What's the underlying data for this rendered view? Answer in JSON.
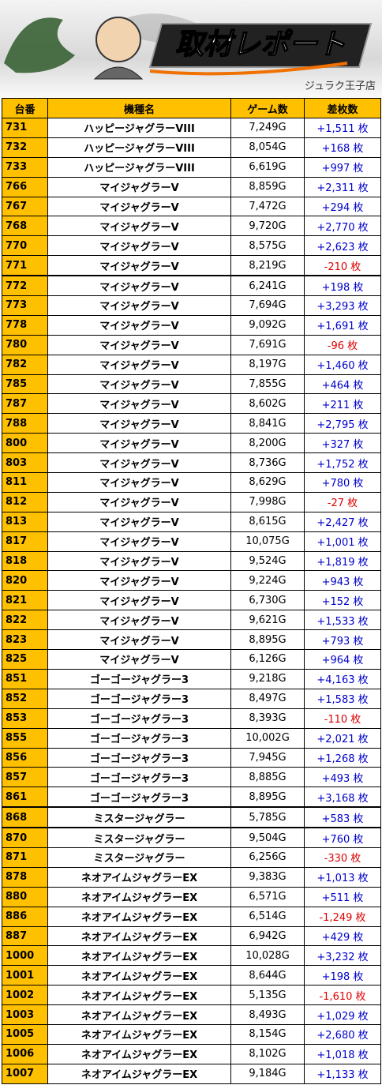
{
  "header": {
    "title": "取材レポート",
    "store": "ジュラク王子店"
  },
  "table": {
    "columns": [
      "台番",
      "機種名",
      "ゲーム数",
      "差枚数"
    ],
    "rows": [
      [
        "731",
        "ハッピージャグラーVIII",
        "7,249G",
        "+1,511 枚"
      ],
      [
        "732",
        "ハッピージャグラーVIII",
        "8,054G",
        "+168 枚"
      ],
      [
        "733",
        "ハッピージャグラーVIII",
        "6,619G",
        "+997 枚"
      ],
      [
        "766",
        "マイジャグラーV",
        "8,859G",
        "+2,311 枚"
      ],
      [
        "767",
        "マイジャグラーV",
        "7,472G",
        "+294 枚"
      ],
      [
        "768",
        "マイジャグラーV",
        "9,720G",
        "+2,770 枚"
      ],
      [
        "770",
        "マイジャグラーV",
        "8,575G",
        "+2,623 枚"
      ],
      [
        "771",
        "マイジャグラーV",
        "8,219G",
        "-210 枚"
      ],
      [
        "772",
        "マイジャグラーV",
        "6,241G",
        "+198 枚"
      ],
      [
        "773",
        "マイジャグラーV",
        "7,694G",
        "+3,293 枚"
      ],
      [
        "778",
        "マイジャグラーV",
        "9,092G",
        "+1,691 枚"
      ],
      [
        "780",
        "マイジャグラーV",
        "7,691G",
        "-96 枚"
      ],
      [
        "782",
        "マイジャグラーV",
        "8,197G",
        "+1,460 枚"
      ],
      [
        "785",
        "マイジャグラーV",
        "7,855G",
        "+464 枚"
      ],
      [
        "787",
        "マイジャグラーV",
        "8,602G",
        "+211 枚"
      ],
      [
        "788",
        "マイジャグラーV",
        "8,841G",
        "+2,795 枚"
      ],
      [
        "800",
        "マイジャグラーV",
        "8,200G",
        "+327 枚"
      ],
      [
        "803",
        "マイジャグラーV",
        "8,736G",
        "+1,752 枚"
      ],
      [
        "811",
        "マイジャグラーV",
        "8,629G",
        "+780 枚"
      ],
      [
        "812",
        "マイジャグラーV",
        "7,998G",
        "-27 枚"
      ],
      [
        "813",
        "マイジャグラーV",
        "8,615G",
        "+2,427 枚"
      ],
      [
        "817",
        "マイジャグラーV",
        "10,075G",
        "+1,001 枚"
      ],
      [
        "818",
        "マイジャグラーV",
        "9,524G",
        "+1,819 枚"
      ],
      [
        "820",
        "マイジャグラーV",
        "9,224G",
        "+943 枚"
      ],
      [
        "821",
        "マイジャグラーV",
        "6,730G",
        "+152 枚"
      ],
      [
        "822",
        "マイジャグラーV",
        "9,621G",
        "+1,533 枚"
      ],
      [
        "823",
        "マイジャグラーV",
        "8,895G",
        "+793 枚"
      ],
      [
        "825",
        "マイジャグラーV",
        "6,126G",
        "+964 枚"
      ],
      [
        "851",
        "ゴーゴージャグラー3",
        "9,218G",
        "+4,163 枚"
      ],
      [
        "852",
        "ゴーゴージャグラー3",
        "8,497G",
        "+1,583 枚"
      ],
      [
        "853",
        "ゴーゴージャグラー3",
        "8,393G",
        "-110 枚"
      ],
      [
        "855",
        "ゴーゴージャグラー3",
        "10,002G",
        "+2,021 枚"
      ],
      [
        "856",
        "ゴーゴージャグラー3",
        "7,945G",
        "+1,268 枚"
      ],
      [
        "857",
        "ゴーゴージャグラー3",
        "8,885G",
        "+493 枚"
      ],
      [
        "861",
        "ゴーゴージャグラー3",
        "8,895G",
        "+3,168 枚"
      ],
      [
        "868",
        "ミスタージャグラー",
        "5,785G",
        "+583 枚"
      ],
      [
        "870",
        "ミスタージャグラー",
        "9,504G",
        "+760 枚"
      ],
      [
        "871",
        "ミスタージャグラー",
        "6,256G",
        "-330 枚"
      ],
      [
        "878",
        "ネオアイムジャグラーEX",
        "9,383G",
        "+1,013 枚"
      ],
      [
        "880",
        "ネオアイムジャグラーEX",
        "6,571G",
        "+511 枚"
      ],
      [
        "886",
        "ネオアイムジャグラーEX",
        "6,514G",
        "-1,249 枚"
      ],
      [
        "887",
        "ネオアイムジャグラーEX",
        "6,942G",
        "+429 枚"
      ],
      [
        "1000",
        "ネオアイムジャグラーEX",
        "10,028G",
        "+3,232 枚"
      ],
      [
        "1001",
        "ネオアイムジャグラーEX",
        "8,644G",
        "+198 枚"
      ],
      [
        "1002",
        "ネオアイムジャグラーEX",
        "5,135G",
        "-1,610 枚"
      ],
      [
        "1003",
        "ネオアイムジャグラーEX",
        "8,493G",
        "+1,029 枚"
      ],
      [
        "1005",
        "ネオアイムジャグラーEX",
        "8,154G",
        "+2,680 枚"
      ],
      [
        "1006",
        "ネオアイムジャグラーEX",
        "8,102G",
        "+1,018 枚"
      ],
      [
        "1007",
        "ネオアイムジャグラーEX",
        "9,184G",
        "+1,133 枚"
      ]
    ]
  }
}
